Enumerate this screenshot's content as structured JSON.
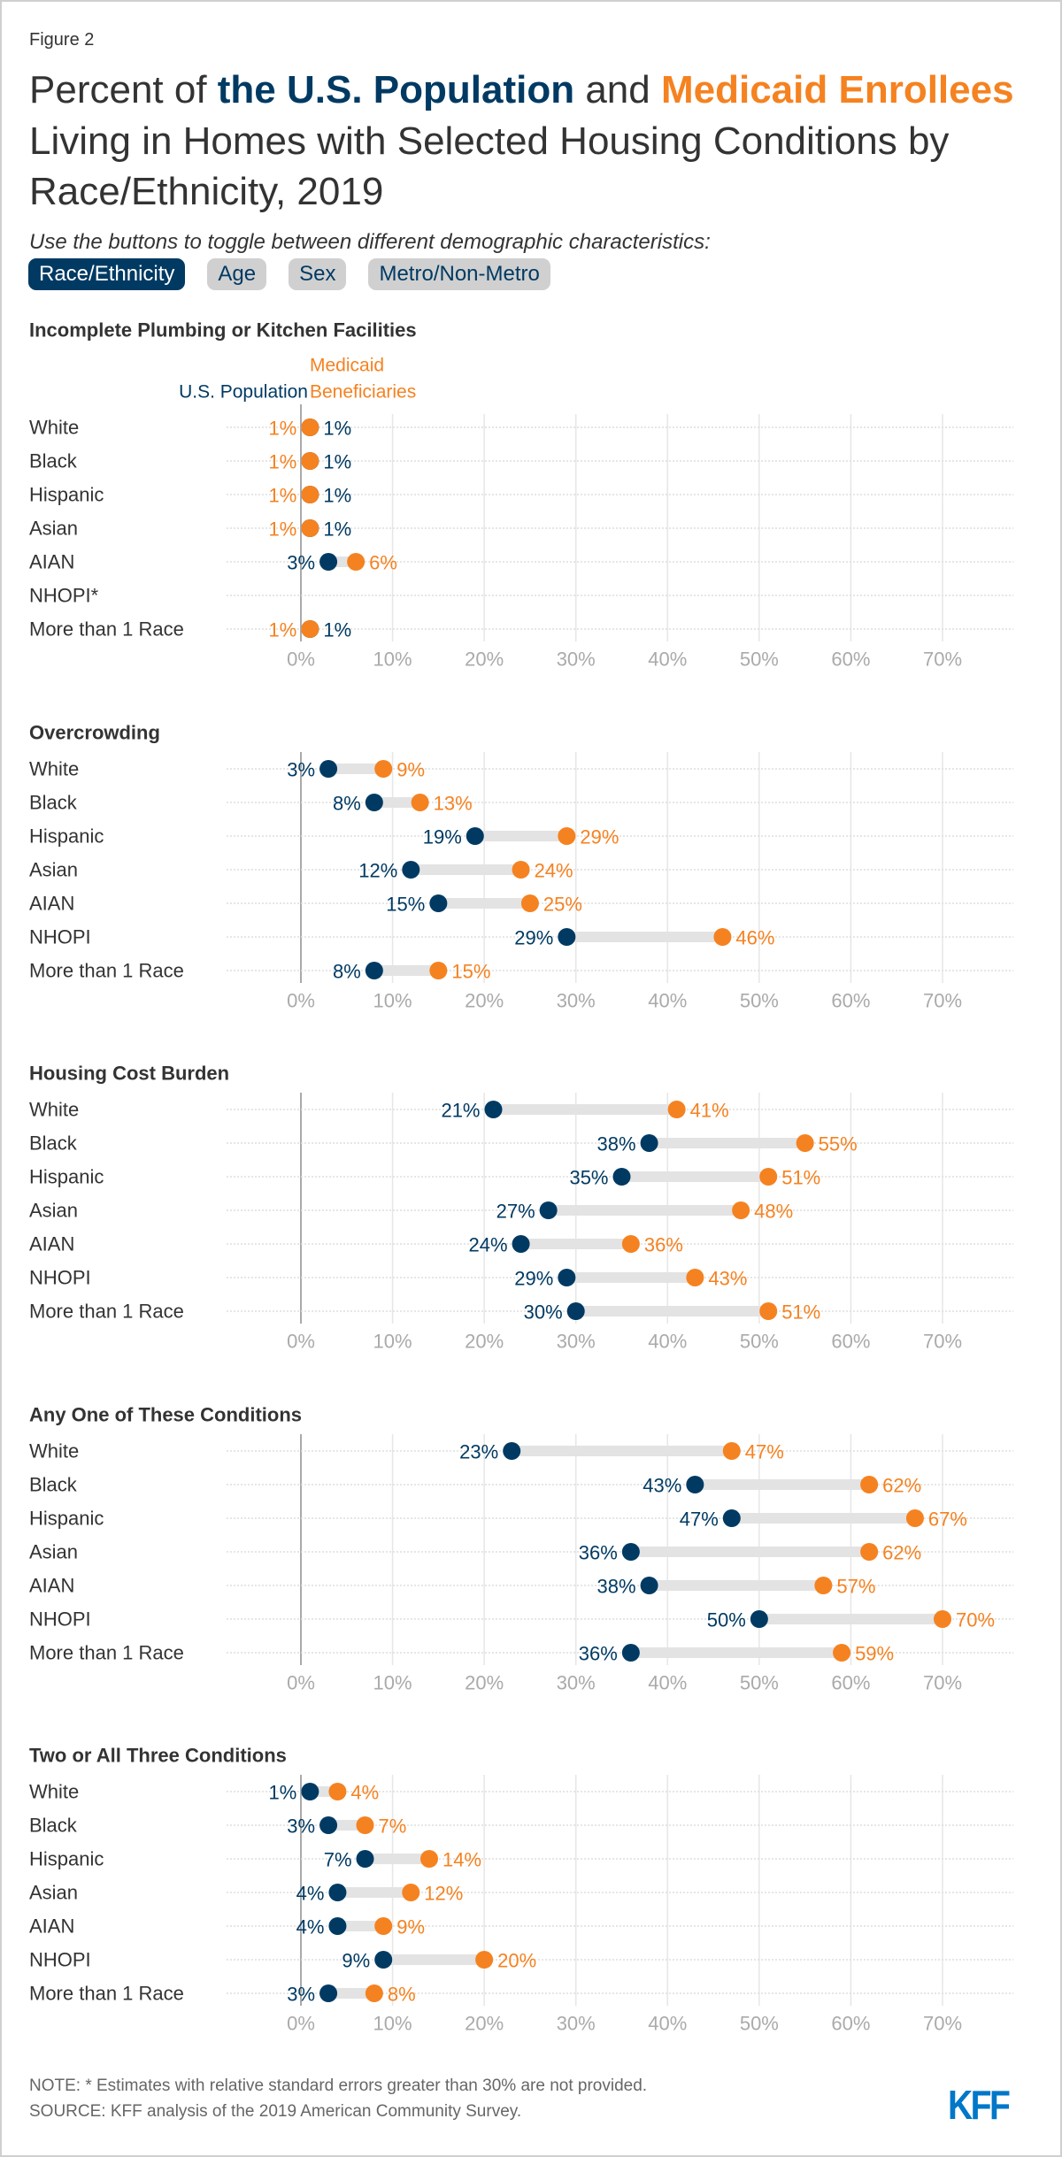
{
  "figure_label": "Figure 2",
  "title": {
    "part1": "Percent of ",
    "part2": "the U.S. Population",
    "part3": " and ",
    "part4": "Medicaid Enrollees",
    "part5": " Living in Homes with Selected Housing Conditions by Race/Ethnicity, 2019"
  },
  "subtitle": "Use the buttons to toggle between different demographic characteristics:",
  "buttons": [
    {
      "label": "Race/Ethnicity",
      "active": true
    },
    {
      "label": "Age",
      "active": false
    },
    {
      "label": "Sex",
      "active": false
    },
    {
      "label": "Metro/Non-Metro",
      "active": false
    }
  ],
  "colors": {
    "us": "#003a63",
    "medicaid": "#f58220",
    "connector": "#e3e3e3",
    "grid": "#e6e6e6",
    "axis_text": "#aaaaaa"
  },
  "chart_data": {
    "type": "dumbbell",
    "legend": {
      "us": "U.S. Population",
      "medicaid_line1": "Medicaid",
      "medicaid_line2": "Beneficiaries"
    },
    "categories": [
      "White",
      "Black",
      "Hispanic",
      "Asian",
      "AIAN",
      "NHOPI",
      "More than 1 Race"
    ],
    "xlim": [
      0,
      70
    ],
    "xticks": [
      "0%",
      "10%",
      "20%",
      "30%",
      "40%",
      "50%",
      "60%",
      "70%"
    ],
    "panels": [
      {
        "title": "Incomplete Plumbing or Kitchen Facilities",
        "category_labels": [
          "White",
          "Black",
          "Hispanic",
          "Asian",
          "AIAN",
          "NHOPI*",
          "More than 1 Race"
        ],
        "us": [
          1,
          1,
          1,
          1,
          3,
          null,
          1
        ],
        "medicaid": [
          1,
          1,
          1,
          1,
          6,
          null,
          1
        ]
      },
      {
        "title": "Overcrowding",
        "category_labels": [
          "White",
          "Black",
          "Hispanic",
          "Asian",
          "AIAN",
          "NHOPI",
          "More than 1 Race"
        ],
        "us": [
          3,
          8,
          19,
          12,
          15,
          29,
          8
        ],
        "medicaid": [
          9,
          13,
          29,
          24,
          25,
          46,
          15
        ]
      },
      {
        "title": "Housing Cost Burden",
        "category_labels": [
          "White",
          "Black",
          "Hispanic",
          "Asian",
          "AIAN",
          "NHOPI",
          "More than 1 Race"
        ],
        "us": [
          21,
          38,
          35,
          27,
          24,
          29,
          30
        ],
        "medicaid": [
          41,
          55,
          51,
          48,
          36,
          43,
          51
        ]
      },
      {
        "title": "Any One of These Conditions",
        "category_labels": [
          "White",
          "Black",
          "Hispanic",
          "Asian",
          "AIAN",
          "NHOPI",
          "More than 1 Race"
        ],
        "us": [
          23,
          43,
          47,
          36,
          38,
          50,
          36
        ],
        "medicaid": [
          47,
          62,
          67,
          62,
          57,
          70,
          59
        ]
      },
      {
        "title": "Two or All Three Conditions",
        "category_labels": [
          "White",
          "Black",
          "Hispanic",
          "Asian",
          "AIAN",
          "NHOPI",
          "More than 1 Race"
        ],
        "us": [
          1,
          3,
          7,
          4,
          4,
          9,
          3
        ],
        "medicaid": [
          4,
          7,
          14,
          12,
          9,
          20,
          8
        ]
      }
    ]
  },
  "footer": {
    "note": "NOTE: * Estimates with relative standard errors greater than 30% are not provided.",
    "source": "SOURCE: KFF analysis of the 2019 American Community Survey.",
    "logo": "KFF"
  }
}
